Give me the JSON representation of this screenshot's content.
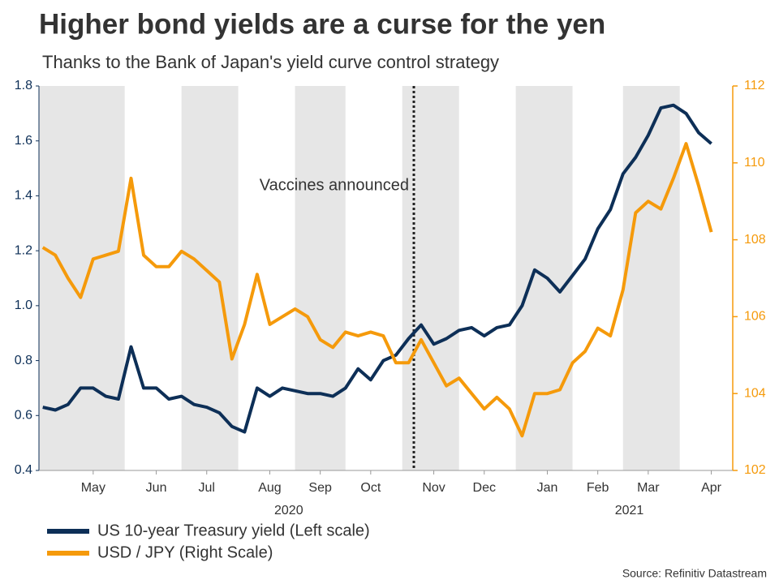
{
  "chart_data": {
    "type": "line",
    "title": "Higher bond yields are a curse for the yen",
    "subtitle": "Thanks to the Bank of Japan's yield curve control strategy",
    "annotation": "Vaccines announced",
    "source": "Source: Refinitiv Datastream",
    "years": [
      "2020",
      "2021"
    ],
    "categories": [
      null,
      null,
      null,
      null,
      "May",
      null,
      null,
      null,
      null,
      "Jun",
      null,
      null,
      null,
      "Jul",
      null,
      null,
      null,
      null,
      "Aug",
      null,
      null,
      null,
      "Sep",
      null,
      null,
      null,
      "Oct",
      null,
      null,
      null,
      null,
      "Nov",
      null,
      null,
      null,
      "Dec",
      null,
      null,
      null,
      null,
      "Jan",
      null,
      null,
      null,
      "Feb",
      null,
      null,
      null,
      "Mar",
      null,
      null,
      null,
      null,
      "Apr",
      null
    ],
    "ylim": [
      0.4,
      1.8
    ],
    "yticks": [
      0.4,
      0.6,
      0.8,
      {
        "value": 1,
        "label": "1.0"
      },
      1.2,
      1.4,
      1.6,
      1.8
    ],
    "y2lim": [
      102,
      112
    ],
    "y2ticks": [
      102,
      104,
      106,
      108,
      110,
      112
    ],
    "grid": false,
    "series": [
      {
        "name": "US 10-year Treasury yield (Left scale)",
        "color": "#0d2f57",
        "values": [
          0.63,
          0.62,
          0.64,
          0.7,
          0.7,
          0.67,
          0.66,
          0.85,
          0.7,
          0.7,
          0.66,
          0.67,
          0.64,
          0.63,
          0.61,
          0.56,
          0.54,
          0.7,
          0.67,
          0.7,
          0.69,
          0.68,
          0.68,
          0.67,
          0.7,
          0.77,
          0.73,
          0.8,
          0.82,
          0.88,
          0.93,
          0.86,
          0.88,
          0.91,
          0.92,
          0.89,
          0.92,
          0.93,
          1.0,
          1.13,
          1.1,
          1.05,
          1.11,
          1.17,
          1.28,
          1.35,
          1.48,
          1.54,
          1.62,
          1.72,
          1.73,
          1.7,
          1.63,
          1.59,
          null
        ]
      },
      {
        "name": "USD / JPY (Right Scale)",
        "color": "#f59a0b",
        "axis": "y2",
        "values": [
          107.8,
          107.6,
          107.0,
          106.5,
          107.5,
          107.6,
          107.7,
          109.6,
          107.6,
          107.3,
          107.3,
          107.7,
          107.5,
          107.2,
          106.9,
          104.9,
          105.8,
          107.1,
          105.8,
          106.0,
          106.2,
          106.0,
          105.4,
          105.2,
          105.6,
          105.5,
          105.6,
          105.5,
          104.8,
          104.8,
          105.4,
          104.8,
          104.2,
          104.4,
          104.0,
          103.6,
          103.9,
          103.6,
          102.9,
          104.0,
          104.0,
          104.1,
          104.8,
          105.1,
          105.7,
          105.5,
          106.7,
          108.7,
          109.0,
          108.8,
          109.6,
          110.5,
          109.4,
          108.2,
          null
        ]
      }
    ]
  }
}
